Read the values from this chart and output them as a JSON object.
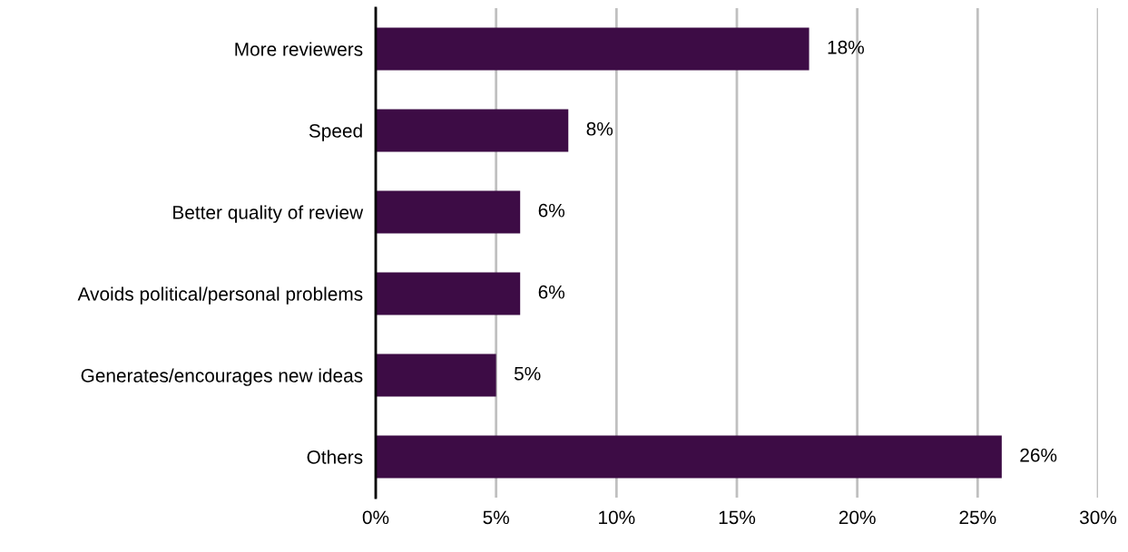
{
  "chart_data": {
    "type": "bar",
    "orientation": "horizontal",
    "categories": [
      "More reviewers",
      "Speed",
      "Better quality of review",
      "Avoids political/personal problems",
      "Generates/encourages new ideas",
      "Others"
    ],
    "values": [
      18,
      8,
      6,
      6,
      5,
      26
    ],
    "value_labels": [
      "18%",
      "8%",
      "6%",
      "6%",
      "5%",
      "26%"
    ],
    "color": "#3d0c45",
    "xlim": [
      0,
      30
    ],
    "xticks": [
      {
        "value": 0,
        "label": "0%"
      },
      {
        "value": 5,
        "label": "5%"
      },
      {
        "value": 10,
        "label": "10%"
      },
      {
        "value": 15,
        "label": "15%"
      },
      {
        "value": 20,
        "label": "20%"
      },
      {
        "value": 25,
        "label": "25%"
      },
      {
        "value": 30,
        "label": "30%"
      }
    ],
    "grid": "x"
  }
}
